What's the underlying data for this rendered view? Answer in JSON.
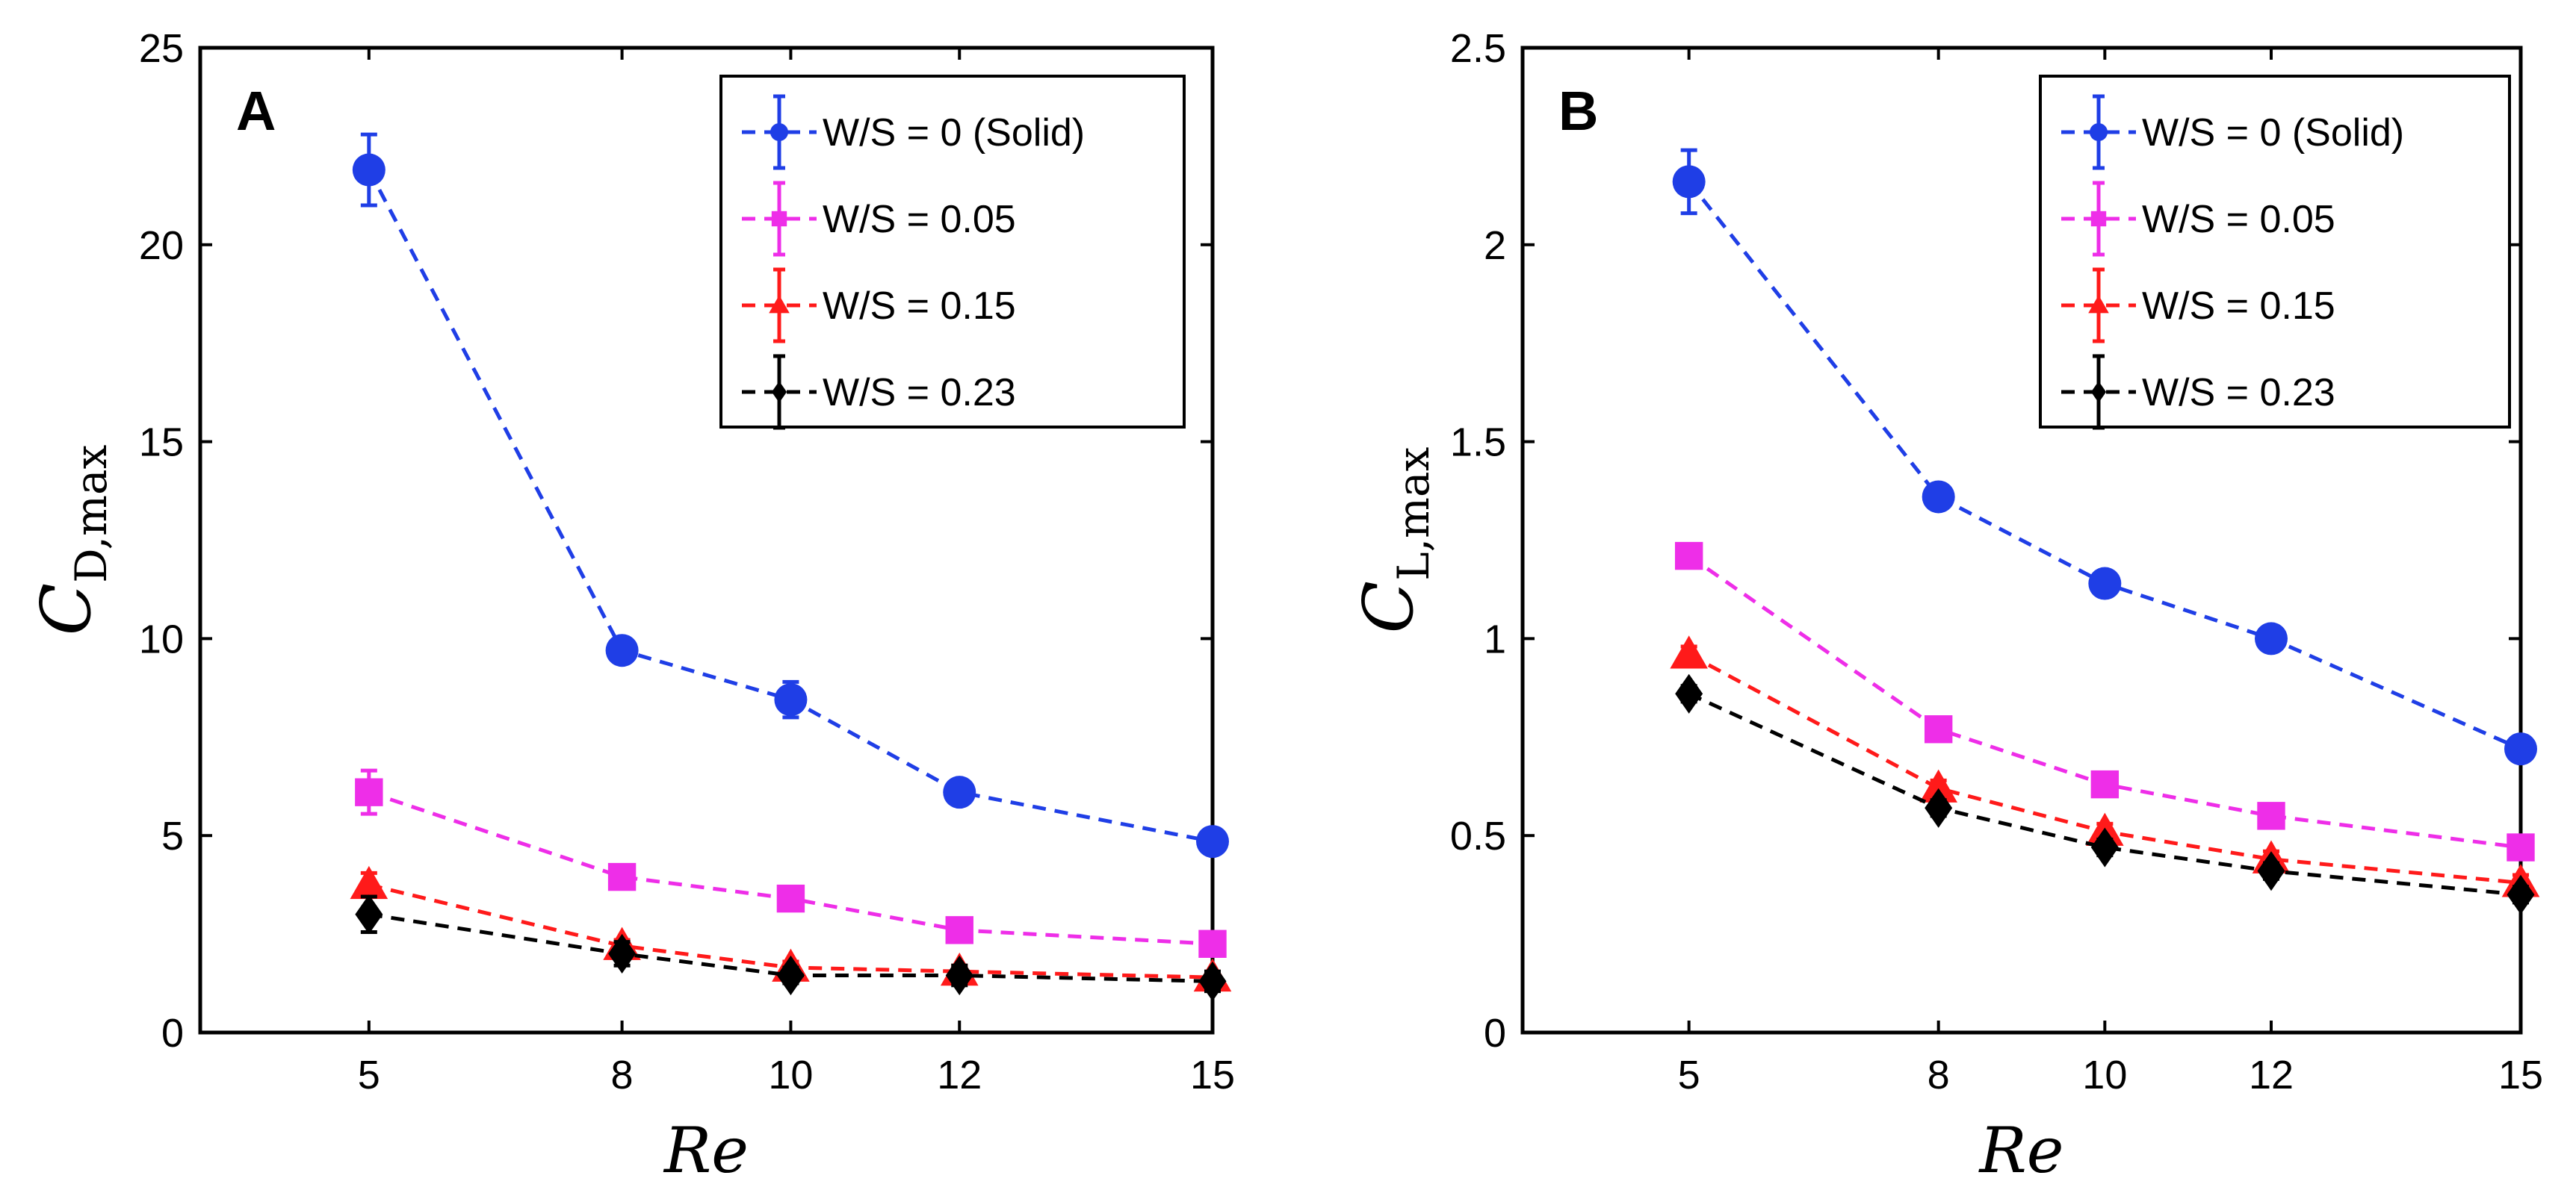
{
  "chart_data": [
    {
      "type": "line",
      "panel_label": "A",
      "xlabel": "Re",
      "ylabel_main": "C",
      "ylabel_sub": "D,max",
      "categories": [
        5,
        8,
        10,
        12,
        15
      ],
      "xlim": [
        3,
        15
      ],
      "ylim": [
        0,
        25
      ],
      "yticks": [
        0,
        5,
        10,
        15,
        20,
        25
      ],
      "ytick_labels": [
        "0",
        "5",
        "10",
        "15",
        "20",
        "25"
      ],
      "legend_position": "top-right",
      "series": [
        {
          "name": "W/S = 0 (Solid)",
          "color": "#1f3ee6",
          "marker": "circle",
          "values": [
            21.9,
            9.7,
            8.45,
            6.1,
            4.85
          ],
          "errors": [
            0.9,
            0.2,
            0.45,
            0.2,
            0.15
          ]
        },
        {
          "name": "W/S = 0.05",
          "color": "#ee2ee8",
          "marker": "square",
          "values": [
            6.1,
            3.95,
            3.4,
            2.6,
            2.25
          ],
          "errors": [
            0.55,
            0.15,
            0.15,
            0.15,
            0.15
          ]
        },
        {
          "name": "W/S = 0.15",
          "color": "#ff1a1a",
          "marker": "triangle",
          "values": [
            3.75,
            2.2,
            1.65,
            1.55,
            1.4
          ],
          "errors": [
            0.3,
            0.15,
            0.15,
            0.15,
            0.15
          ]
        },
        {
          "name": "W/S = 0.23",
          "color": "#000000",
          "marker": "diamond",
          "values": [
            3.0,
            2.0,
            1.45,
            1.45,
            1.3
          ],
          "errors": [
            0.45,
            0.3,
            0.2,
            0.25,
            0.25
          ]
        }
      ]
    },
    {
      "type": "line",
      "panel_label": "B",
      "xlabel": "Re",
      "ylabel_main": "C",
      "ylabel_sub": "L,max",
      "categories": [
        5,
        8,
        10,
        12,
        15
      ],
      "xlim": [
        3,
        15
      ],
      "ylim": [
        0,
        2.5
      ],
      "yticks": [
        0,
        0.5,
        1,
        1.5,
        2,
        2.5
      ],
      "ytick_labels": [
        "0",
        "0.5",
        "1",
        "1.5",
        "2",
        "2.5"
      ],
      "legend_position": "top-right",
      "series": [
        {
          "name": "W/S = 0 (Solid)",
          "color": "#1f3ee6",
          "marker": "circle",
          "values": [
            2.16,
            1.36,
            1.14,
            1.0,
            0.72
          ],
          "errors": [
            0.08,
            0.02,
            0.02,
            0.02,
            0.02
          ]
        },
        {
          "name": "W/S = 0.05",
          "color": "#ee2ee8",
          "marker": "square",
          "values": [
            1.21,
            0.77,
            0.63,
            0.55,
            0.47
          ],
          "errors": [
            0.02,
            0.02,
            0.02,
            0.02,
            0.02
          ]
        },
        {
          "name": "W/S = 0.15",
          "color": "#ff1a1a",
          "marker": "triangle",
          "values": [
            0.96,
            0.62,
            0.51,
            0.44,
            0.38
          ],
          "errors": [
            0.02,
            0.02,
            0.02,
            0.02,
            0.02
          ]
        },
        {
          "name": "W/S = 0.23",
          "color": "#000000",
          "marker": "diamond",
          "values": [
            0.86,
            0.57,
            0.47,
            0.41,
            0.35
          ],
          "errors": [
            0.02,
            0.02,
            0.02,
            0.02,
            0.02
          ]
        }
      ]
    }
  ]
}
